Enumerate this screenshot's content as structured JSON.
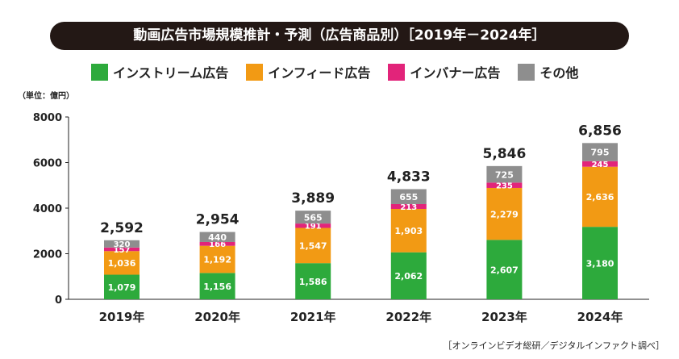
{
  "header": {
    "title": "動画広告市場規模推計・予測（広告商品別）［2019年－2024年］"
  },
  "unit_label": "（単位：億円）",
  "source": "［オンラインビデオ総研／デジタルインファクト調べ］",
  "colors": {
    "instream": "#2DAA3C",
    "infeed": "#F29A14",
    "inbanner": "#E2247A",
    "other": "#8E8E8E",
    "title_bg": "#231815"
  },
  "chart_data": {
    "type": "bar",
    "stacked": true,
    "categories": [
      "2019年",
      "2020年",
      "2021年",
      "2022年",
      "2023年",
      "2024年"
    ],
    "series": [
      {
        "name": "インストリーム広告",
        "color": "#2DAA3C",
        "values": [
          1079,
          1156,
          1586,
          2062,
          2607,
          3180
        ],
        "labels": [
          "1,079",
          "1,156",
          "1,586",
          "2,062",
          "2,607",
          "3,180"
        ]
      },
      {
        "name": "インフィード広告",
        "color": "#F29A14",
        "values": [
          1036,
          1192,
          1547,
          1903,
          2279,
          2636
        ],
        "labels": [
          "1,036",
          "1,192",
          "1,547",
          "1,903",
          "2,279",
          "2,636"
        ]
      },
      {
        "name": "インバナー広告",
        "color": "#E2247A",
        "values": [
          157,
          166,
          191,
          213,
          235,
          245
        ],
        "labels": [
          "157",
          "166",
          "191",
          "213",
          "235",
          "245"
        ]
      },
      {
        "name": "その他",
        "color": "#8E8E8E",
        "values": [
          320,
          440,
          565,
          655,
          725,
          795
        ],
        "labels": [
          "320",
          "440",
          "565",
          "655",
          "725",
          "795"
        ]
      }
    ],
    "totals": [
      "2,592",
      "2,954",
      "3,889",
      "4,833",
      "5,846",
      "6,856"
    ],
    "ylim": [
      0,
      8000
    ],
    "yticks": [
      0,
      2000,
      4000,
      6000,
      8000
    ],
    "ytick_labels": [
      "0",
      "2000",
      "4000",
      "6000",
      "8000"
    ],
    "grid": false,
    "legend_position": "top"
  }
}
